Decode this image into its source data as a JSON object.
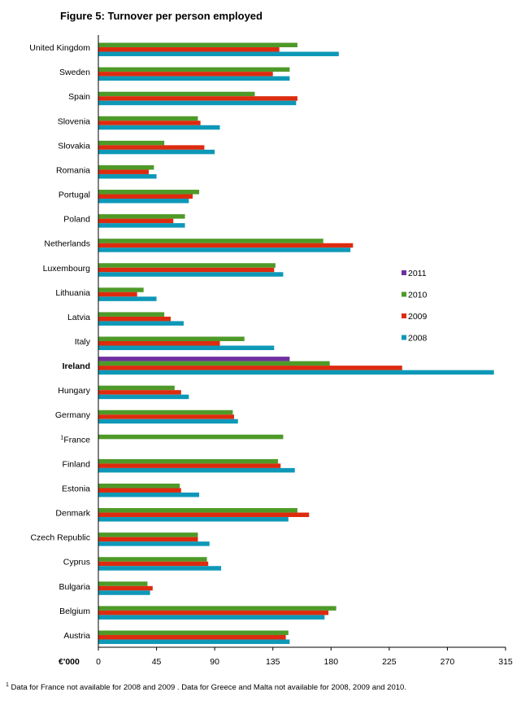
{
  "chart_data": {
    "type": "bar",
    "orientation": "horizontal",
    "title": "Figure 5: Turnover per person employed",
    "unit_label": "€'000",
    "xlim": [
      0,
      315
    ],
    "x_ticks": [
      "0",
      "45",
      "90",
      "135",
      "180",
      "225",
      "270",
      "315"
    ],
    "highlighted_category": "Ireland",
    "categories": [
      "United Kingdom",
      "Sweden",
      "Spain",
      "Slovenia",
      "Slovakia",
      "Romania",
      "Portugal",
      "Poland",
      "Netherlands",
      "Luxembourg",
      "Lithuania",
      "Latvia",
      "Italy",
      "Ireland",
      "Hungary",
      "Germany",
      "France",
      "Finland",
      "Estonia",
      "Denmark",
      "Czech Republic",
      "Cyprus",
      "Bulgaria",
      "Belgium",
      "Austria"
    ],
    "category_footnote_marks": {
      "France": "1"
    },
    "series": [
      {
        "name": "2011",
        "color": "#7030a0",
        "values": [
          null,
          null,
          null,
          null,
          null,
          null,
          null,
          null,
          null,
          null,
          null,
          null,
          null,
          148,
          null,
          null,
          null,
          null,
          null,
          null,
          null,
          null,
          null,
          null,
          null
        ]
      },
      {
        "name": "2010",
        "color": "#4e9a28",
        "values": [
          154,
          148,
          121,
          77,
          51,
          43,
          78,
          67,
          174,
          137,
          35,
          51,
          113,
          179,
          59,
          104,
          143,
          139,
          63,
          154,
          77,
          84,
          38,
          184,
          147
        ]
      },
      {
        "name": "2009",
        "color": "#dd2b0f",
        "values": [
          140,
          135,
          154,
          79,
          82,
          39,
          73,
          58,
          197,
          136,
          30,
          56,
          94,
          235,
          64,
          105,
          null,
          141,
          64,
          163,
          77,
          85,
          42,
          178,
          145
        ]
      },
      {
        "name": "2008",
        "color": "#0e98b8",
        "values": [
          186,
          148,
          153,
          94,
          90,
          45,
          70,
          67,
          195,
          143,
          45,
          66,
          136,
          306,
          70,
          108,
          null,
          152,
          78,
          147,
          86,
          95,
          40,
          175,
          148
        ]
      }
    ],
    "legend_placement": "right",
    "legend_order": [
      "2011",
      "2010",
      "2009",
      "2008"
    ],
    "grid": false
  },
  "footnote": {
    "mark": "1",
    "text": "Data for France not available for 2008 and 2009 .  Data for Greece and Malta not available for 2008, 2009 and 2010."
  }
}
